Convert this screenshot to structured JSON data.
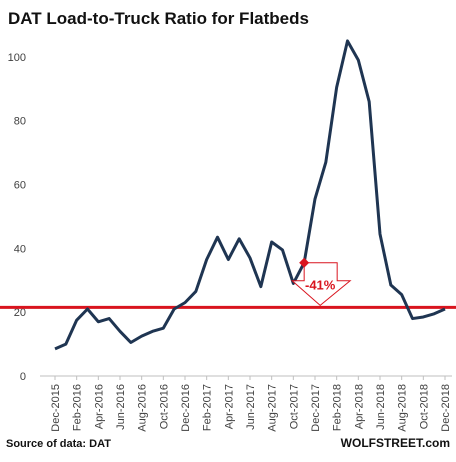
{
  "chart_data": {
    "type": "line",
    "title": "DAT Load-to-Truck  Ratio for Flatbeds",
    "source": "Source of data: DAT",
    "brand": "WOLFSTREET.com",
    "annotation": "-41%",
    "reference_line": 21.5,
    "marker_index": 23,
    "categories": [
      "Dec-2015",
      null,
      "Feb-2016",
      null,
      "Apr-2016",
      null,
      "Jun-2016",
      null,
      "Aug-2016",
      null,
      "Oct-2016",
      null,
      "Dec-2016",
      null,
      "Feb-2017",
      null,
      "Apr-2017",
      null,
      "Jun-2017",
      null,
      "Aug-2017",
      null,
      "Oct-2017",
      null,
      "Dec-2017",
      null,
      "Feb-2018",
      null,
      "Apr-2018",
      null,
      "Jun-2018",
      null,
      "Aug-2018",
      null,
      "Oct-2018",
      null,
      "Dec-2018"
    ],
    "series": [
      {
        "name": "Load-to-Truck Ratio",
        "color": "#1f3552",
        "values": [
          8.5,
          10,
          17.5,
          21,
          17,
          18,
          14,
          10.5,
          12.5,
          14,
          15,
          21,
          23,
          26.5,
          36.5,
          43.5,
          36.5,
          43,
          37,
          28,
          42,
          39.5,
          29,
          35.5,
          55.5,
          67,
          90.5,
          105,
          99,
          86,
          44.5,
          28.5,
          25.5,
          18,
          18.5,
          19.5,
          21
        ]
      }
    ],
    "reference_color": "#d9141e",
    "ylim": [
      0,
      110
    ],
    "yticks": [
      0,
      20,
      40,
      60,
      80,
      100
    ],
    "grid": false
  }
}
